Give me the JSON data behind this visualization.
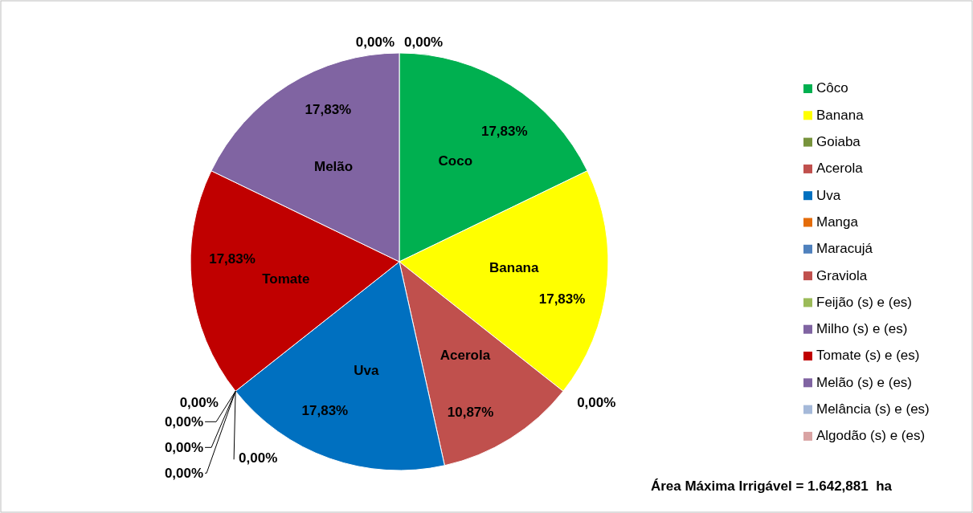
{
  "chart_data": {
    "type": "pie",
    "categories": [
      "Côco",
      "Banana",
      "Goiaba",
      "Acerola",
      "Uva",
      "Manga",
      "Maracujá",
      "Graviola",
      "Feijão (s) e (es)",
      "Milho (s) e (es)",
      "Tomate (s) e (es)",
      "Melão (s) e (es)",
      "Melância (s) e (es)",
      "Algodão (s) e (es)"
    ],
    "values": [
      17.83,
      17.83,
      0,
      10.87,
      17.83,
      0,
      0,
      0,
      0,
      0,
      17.83,
      17.83,
      0,
      0
    ],
    "value_labels": [
      "17,83%",
      "17,83%",
      "0,00%",
      "10,87%",
      "17,83%",
      "0,00%",
      "0,00%",
      "0,00%",
      "0,00%",
      "0,00%",
      "17,83%",
      "17,83%",
      "0,00%",
      "0,00%"
    ],
    "colors": [
      "#00b050",
      "#ffff00",
      "#77933c",
      "#c0504d",
      "#0070c0",
      "#e46c0a",
      "#4f81bd",
      "#c0504d",
      "#9bbb59",
      "#8064a2",
      "#c00000",
      "#8064a2",
      "#a5b9d9",
      "#d9a3a3"
    ],
    "annotations": [
      {
        "text": "Coco",
        "x": "Côco"
      },
      {
        "text": "Banana",
        "x": "Banana"
      },
      {
        "text": "Acerola",
        "x": "Acerola"
      },
      {
        "text": "Uva",
        "x": "Uva"
      },
      {
        "text": "Tomate",
        "x": "Tomate (s) e (es)"
      },
      {
        "text": "Melão",
        "x": "Melão (s) e (es)"
      },
      "Área Máxima Irrigável = 1.642,881  ha"
    ],
    "legend": "right"
  }
}
